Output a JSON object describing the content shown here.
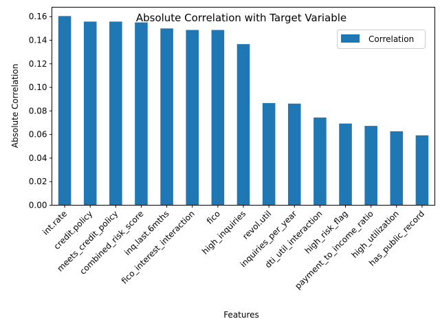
{
  "chart_data": {
    "type": "bar",
    "title": "Absolute Correlation with Target Variable",
    "xlabel": "Features",
    "ylabel": "Absolute Correlation",
    "ylim": [
      0,
      0.168
    ],
    "yticks": [
      "0.00",
      "0.02",
      "0.04",
      "0.06",
      "0.08",
      "0.10",
      "0.12",
      "0.14",
      "0.16"
    ],
    "grid": false,
    "legend_position": "top-right",
    "categories": [
      "int.rate",
      "credit.policy",
      "meets_credit_policy",
      "combined_risk_score",
      "inq.last.6mths",
      "fico_interest_interaction",
      "fico",
      "high_inquiries",
      "revol.util",
      "inquiries_per_year",
      "dti_util_interaction",
      "high_risk_flag",
      "payment_to_income_ratio",
      "high_utilization",
      "has_public_record"
    ],
    "series": [
      {
        "name": "Correlation",
        "color": "#1f77b4",
        "values": [
          0.1605,
          0.1558,
          0.1558,
          0.1551,
          0.15,
          0.1487,
          0.1487,
          0.1367,
          0.0867,
          0.0862,
          0.0744,
          0.0693,
          0.0673,
          0.0627,
          0.0593
        ]
      }
    ]
  }
}
